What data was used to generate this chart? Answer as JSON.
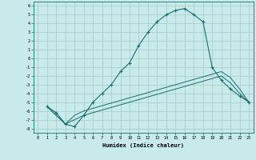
{
  "xlabel": "Humidex (Indice chaleur)",
  "background_color": "#c8eaea",
  "grid_color": "#aacfcf",
  "line_color": "#1a6e6e",
  "xlim": [
    -0.5,
    23.5
  ],
  "ylim": [
    -8.5,
    6.5
  ],
  "yticks": [
    -8,
    -7,
    -6,
    -5,
    -4,
    -3,
    -2,
    -1,
    0,
    1,
    2,
    3,
    4,
    5,
    6
  ],
  "xticks": [
    0,
    1,
    2,
    3,
    4,
    5,
    6,
    7,
    8,
    9,
    10,
    11,
    12,
    13,
    14,
    15,
    16,
    17,
    18,
    19,
    20,
    21,
    22,
    23
  ],
  "line1_x": [
    1,
    2,
    3,
    4,
    5,
    6,
    7,
    8,
    9,
    10,
    11,
    12,
    13,
    14,
    15,
    16,
    17,
    18,
    19,
    20,
    21,
    22,
    23
  ],
  "line1_y": [
    -5.5,
    -6.2,
    -7.5,
    -7.8,
    -6.5,
    -5.0,
    -4.0,
    -3.0,
    -1.5,
    -0.5,
    1.5,
    3.0,
    4.2,
    5.0,
    5.5,
    5.7,
    5.0,
    4.2,
    -1.0,
    -2.5,
    -3.5,
    -4.3,
    -5.0
  ],
  "line2_x": [
    1,
    3,
    4,
    5,
    6,
    7,
    8,
    9,
    10,
    11,
    12,
    13,
    14,
    15,
    16,
    17,
    18,
    19,
    20,
    21,
    22,
    23
  ],
  "line2_y": [
    -5.5,
    -7.5,
    -7.0,
    -6.5,
    -6.2,
    -5.9,
    -5.6,
    -5.3,
    -5.0,
    -4.7,
    -4.4,
    -4.1,
    -3.8,
    -3.5,
    -3.2,
    -2.9,
    -2.6,
    -2.3,
    -2.0,
    -2.8,
    -4.0,
    -5.0
  ],
  "line3_x": [
    1,
    3,
    4,
    5,
    6,
    7,
    8,
    9,
    10,
    11,
    12,
    13,
    14,
    15,
    16,
    17,
    18,
    19,
    20,
    21,
    22,
    23
  ],
  "line3_y": [
    -5.5,
    -7.5,
    -6.5,
    -6.0,
    -5.7,
    -5.4,
    -5.1,
    -4.8,
    -4.5,
    -4.2,
    -3.9,
    -3.6,
    -3.3,
    -3.0,
    -2.7,
    -2.4,
    -2.1,
    -1.8,
    -1.5,
    -2.2,
    -3.5,
    -5.0
  ]
}
